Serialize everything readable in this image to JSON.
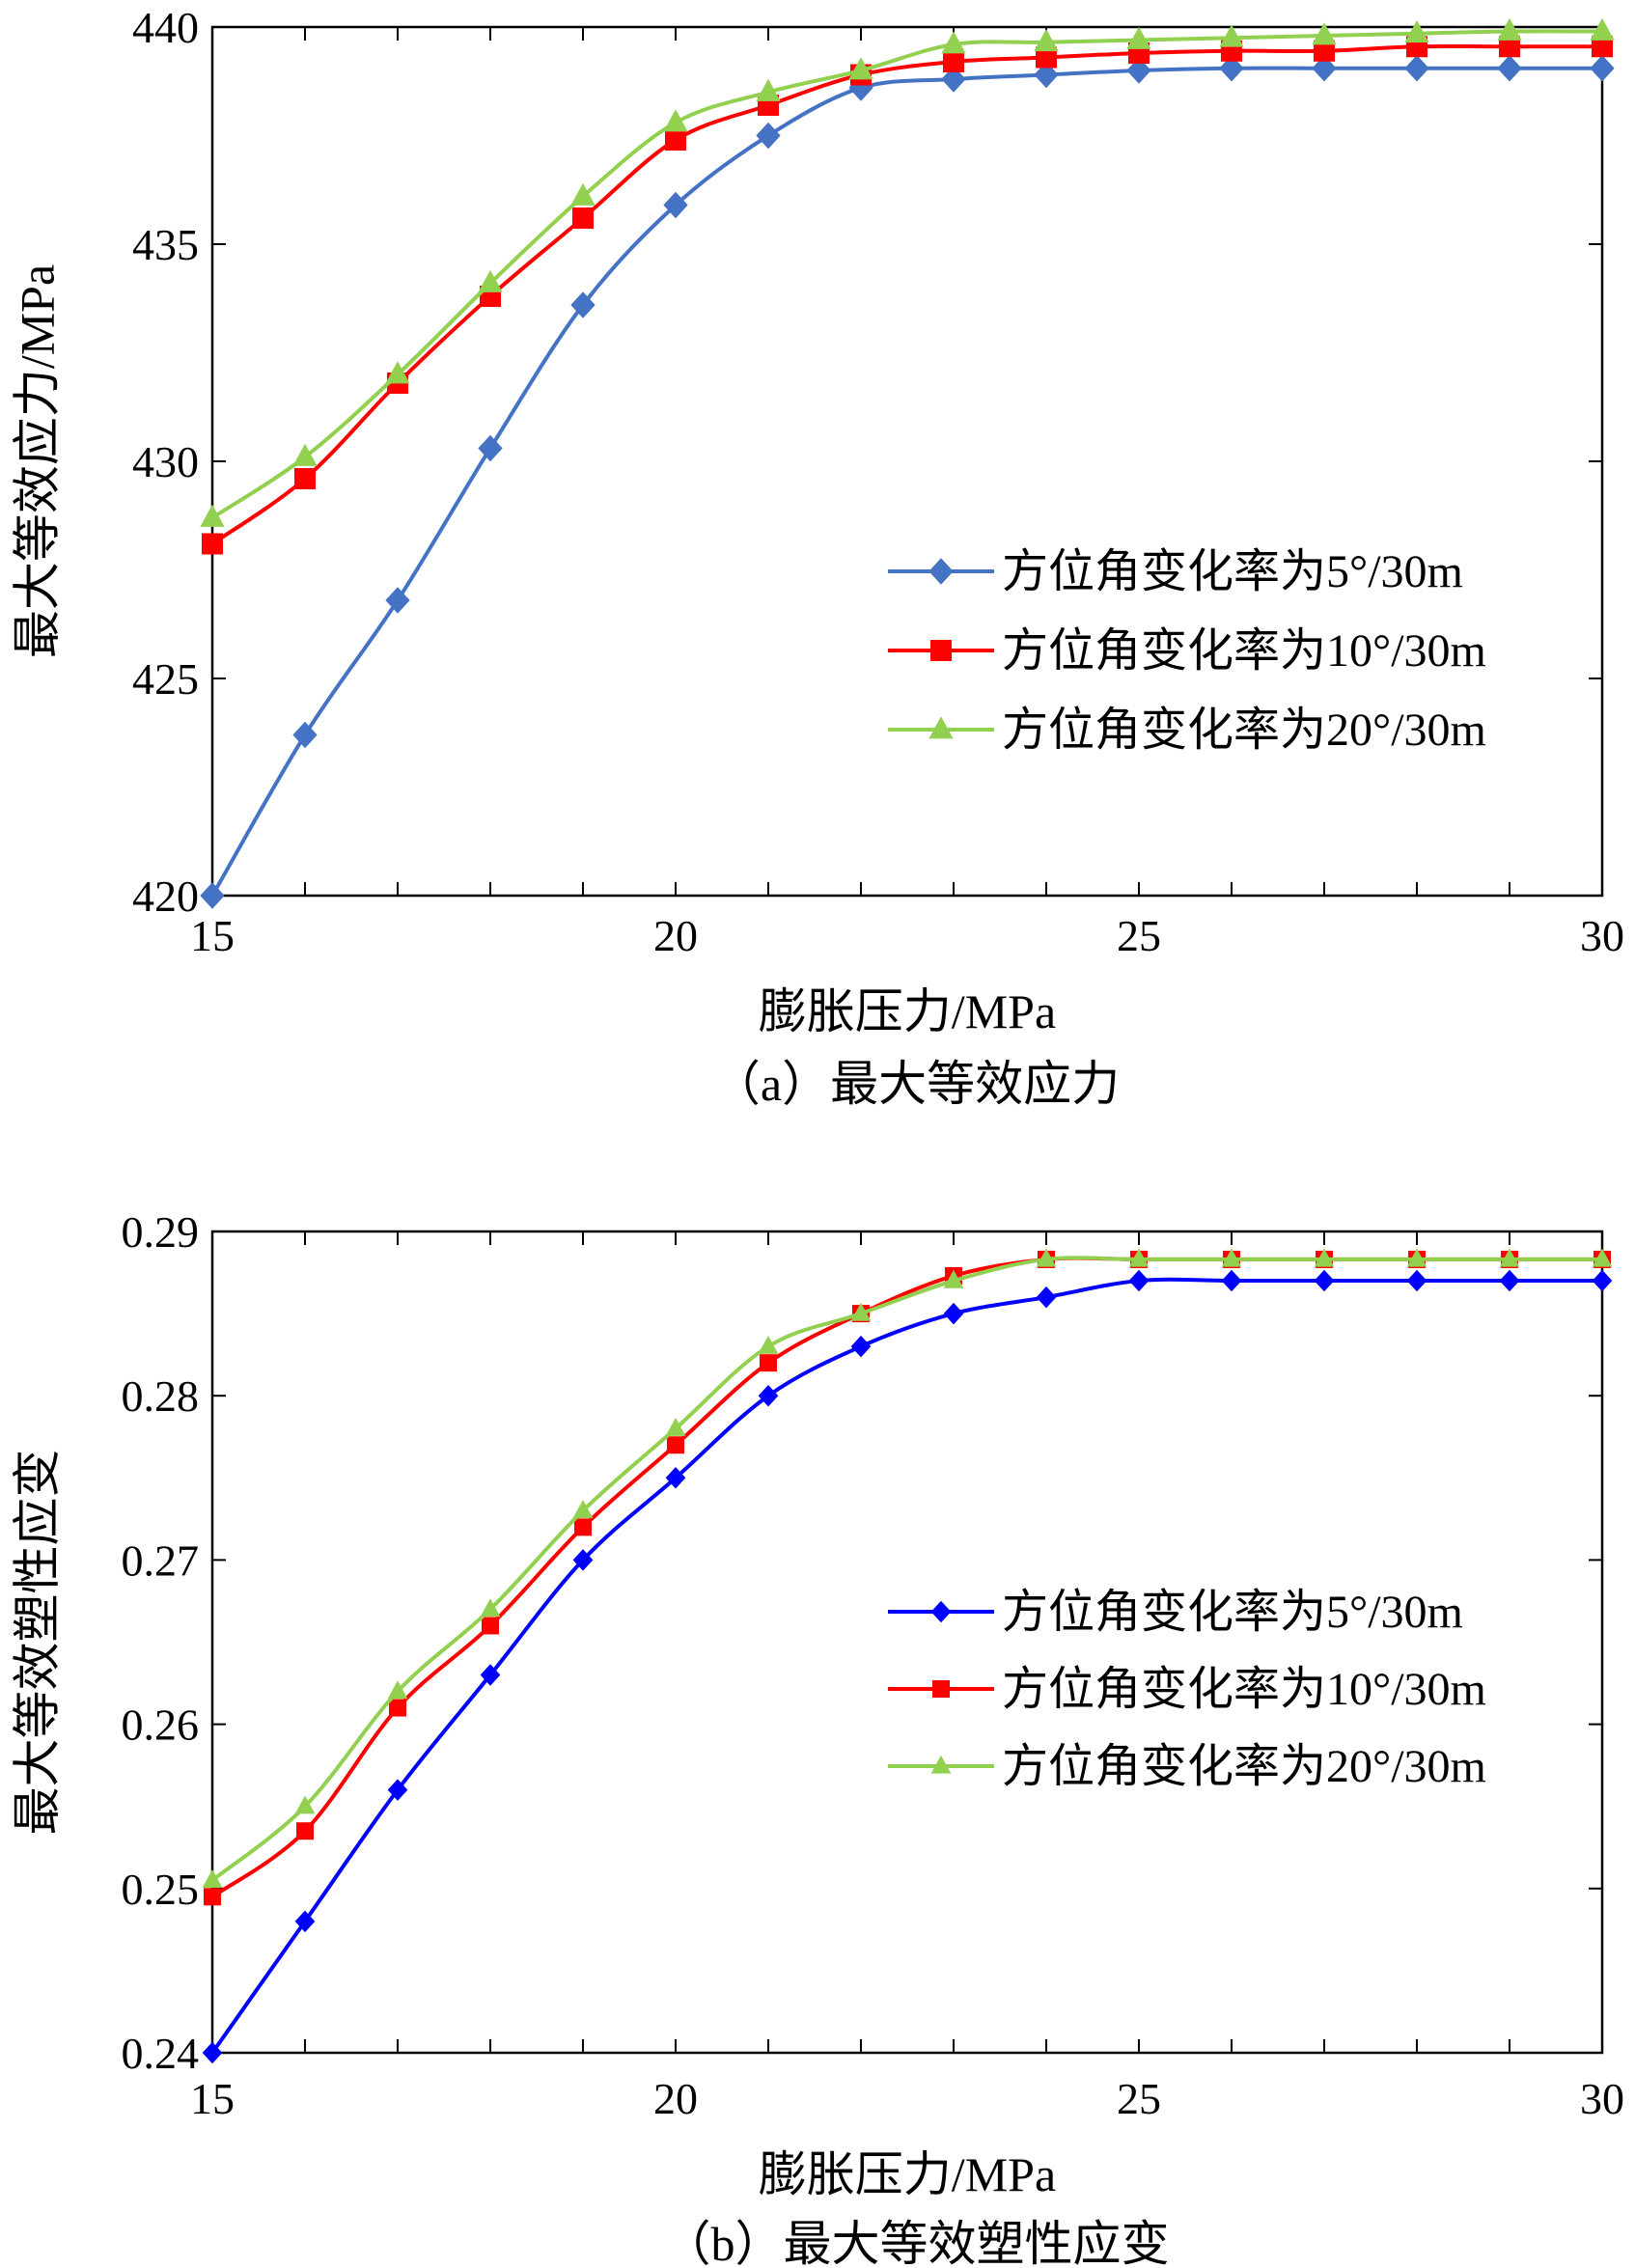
{
  "figure": {
    "caption_a": "（a）最大等效应力",
    "caption_b": "（b）最大等效塑性应变"
  },
  "chart_data": [
    {
      "type": "line",
      "title": "",
      "xlabel": "膨胀压力/MPa",
      "ylabel": "最大等效应力/MPa",
      "xlim": [
        15,
        30
      ],
      "ylim": [
        420,
        440
      ],
      "xticks": [
        "15",
        "20",
        "25",
        "30"
      ],
      "yticks": [
        "420",
        "425",
        "430",
        "435",
        "440"
      ],
      "x": [
        15,
        16,
        17,
        18,
        19,
        20,
        21,
        22,
        23,
        24,
        25,
        26,
        27,
        28,
        29,
        30
      ],
      "grid": false,
      "legend_position": "center-right",
      "series": [
        {
          "name": "方位角变化率为5°/30m",
          "color": "#4472c4",
          "marker": "diamond",
          "values": [
            420.0,
            423.7,
            426.8,
            430.3,
            433.6,
            435.9,
            437.5,
            438.6,
            438.8,
            438.9,
            439.0,
            439.05,
            439.05,
            439.05,
            439.05,
            439.05
          ]
        },
        {
          "name": "方位角变化率为10°/30m",
          "color": "#ff0000",
          "marker": "square",
          "values": [
            428.1,
            429.6,
            431.8,
            433.8,
            435.6,
            437.4,
            438.2,
            438.9,
            439.2,
            439.3,
            439.4,
            439.45,
            439.45,
            439.55,
            439.55,
            439.55
          ]
        },
        {
          "name": "方位角变化率为20°/30m",
          "color": "#92d050",
          "marker": "triangle",
          "values": [
            428.7,
            430.1,
            432.0,
            434.1,
            436.1,
            437.8,
            438.5,
            439.0,
            439.6,
            439.65,
            439.7,
            439.75,
            439.8,
            439.85,
            439.9,
            439.9
          ]
        }
      ]
    },
    {
      "type": "line",
      "title": "",
      "xlabel": "膨胀压力/MPa",
      "ylabel": "最大等效塑性应变",
      "xlim": [
        15,
        30
      ],
      "ylim": [
        0.24,
        0.29
      ],
      "xticks": [
        "15",
        "20",
        "25",
        "30"
      ],
      "yticks": [
        "0.24",
        "0.25",
        "0.26",
        "0.27",
        "0.28",
        "0.29"
      ],
      "x": [
        15,
        16,
        17,
        18,
        19,
        20,
        21,
        22,
        23,
        24,
        25,
        26,
        27,
        28,
        29,
        30
      ],
      "grid": false,
      "legend_position": "center-right",
      "series": [
        {
          "name": "方位角变化率为5°/30m",
          "color": "#0000ff",
          "marker": "diamond",
          "values": [
            0.24,
            0.248,
            0.256,
            0.263,
            0.27,
            0.275,
            0.28,
            0.283,
            0.285,
            0.286,
            0.287,
            0.287,
            0.287,
            0.287,
            0.287,
            0.287
          ]
        },
        {
          "name": "方位角变化率为10°/30m",
          "color": "#ff0000",
          "marker": "square",
          "values": [
            0.2495,
            0.2535,
            0.261,
            0.266,
            0.272,
            0.277,
            0.282,
            0.285,
            0.2873,
            0.2883,
            0.2883,
            0.2883,
            0.2883,
            0.2883,
            0.2883,
            0.2883
          ]
        },
        {
          "name": "方位角变化率为20°/30m",
          "color": "#92d050",
          "marker": "triangle",
          "values": [
            0.2505,
            0.255,
            0.262,
            0.267,
            0.273,
            0.278,
            0.283,
            0.285,
            0.287,
            0.2883,
            0.2883,
            0.2883,
            0.2883,
            0.2883,
            0.2883,
            0.2883
          ]
        }
      ]
    }
  ]
}
